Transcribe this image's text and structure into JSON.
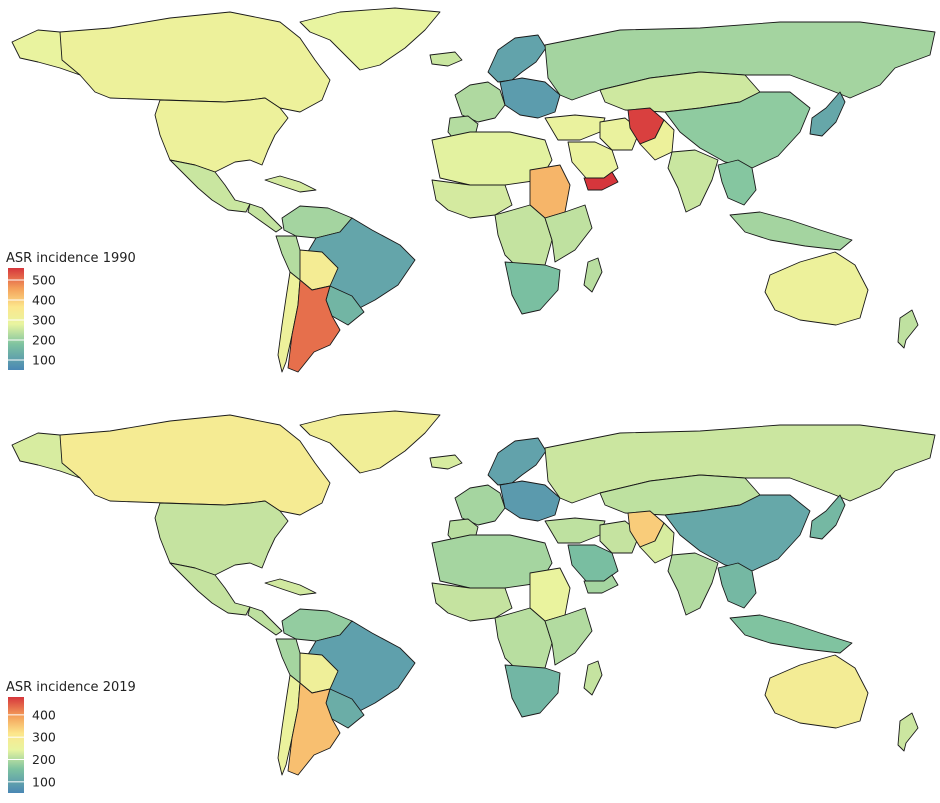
{
  "maps": [
    {
      "id": "map-1990",
      "legend": {
        "title": "ASR incidence 1990",
        "ticks": [
          "500",
          "400",
          "300",
          "200",
          "100"
        ],
        "min": 50,
        "max": 560
      },
      "regions": [
        {
          "name": "greenland",
          "value": 280
        },
        {
          "name": "canada",
          "value": 300
        },
        {
          "name": "alaska",
          "value": 285
        },
        {
          "name": "usa",
          "value": 300
        },
        {
          "name": "mexico",
          "value": 250
        },
        {
          "name": "central-america",
          "value": 245
        },
        {
          "name": "caribbean",
          "value": 260
        },
        {
          "name": "colombia-venezuela",
          "value": 215
        },
        {
          "name": "peru-ecuador",
          "value": 230
        },
        {
          "name": "brazil",
          "value": 115
        },
        {
          "name": "bolivia",
          "value": 330
        },
        {
          "name": "paraguay-uruguay",
          "value": 150
        },
        {
          "name": "chile",
          "value": 300
        },
        {
          "name": "argentina",
          "value": 505
        },
        {
          "name": "iceland",
          "value": 250
        },
        {
          "name": "scandinavia",
          "value": 110
        },
        {
          "name": "western-europe",
          "value": 225
        },
        {
          "name": "iberia",
          "value": 230
        },
        {
          "name": "central-europe",
          "value": 95
        },
        {
          "name": "russia",
          "value": 215
        },
        {
          "name": "mongolia-kazakhstan",
          "value": 255
        },
        {
          "name": "china",
          "value": 195
        },
        {
          "name": "japan-korea",
          "value": 120
        },
        {
          "name": "middle-east",
          "value": 290
        },
        {
          "name": "arabia",
          "value": 290
        },
        {
          "name": "yemen",
          "value": 565
        },
        {
          "name": "iran",
          "value": 290
        },
        {
          "name": "afghanistan",
          "value": 550
        },
        {
          "name": "pakistan",
          "value": 300
        },
        {
          "name": "india",
          "value": 250
        },
        {
          "name": "southeast-asia",
          "value": 185
        },
        {
          "name": "indonesia",
          "value": 215
        },
        {
          "name": "north-africa",
          "value": 275
        },
        {
          "name": "sudan",
          "value": 430
        },
        {
          "name": "west-africa",
          "value": 260
        },
        {
          "name": "central-africa",
          "value": 245
        },
        {
          "name": "east-africa",
          "value": 240
        },
        {
          "name": "southern-africa",
          "value": 170
        },
        {
          "name": "madagascar",
          "value": 235
        },
        {
          "name": "australia",
          "value": 300
        },
        {
          "name": "new-zealand",
          "value": 240
        }
      ]
    },
    {
      "id": "map-2019",
      "legend": {
        "title": "ASR incidence 2019",
        "ticks": [
          "400",
          "300",
          "200",
          "100"
        ],
        "min": 50,
        "max": 480
      },
      "regions": [
        {
          "name": "greenland",
          "value": 275
        },
        {
          "name": "canada",
          "value": 290
        },
        {
          "name": "alaska",
          "value": 230
        },
        {
          "name": "usa",
          "value": 215
        },
        {
          "name": "mexico",
          "value": 215
        },
        {
          "name": "central-america",
          "value": 210
        },
        {
          "name": "caribbean",
          "value": 225
        },
        {
          "name": "colombia-venezuela",
          "value": 175
        },
        {
          "name": "peru-ecuador",
          "value": 190
        },
        {
          "name": "brazil",
          "value": 95
        },
        {
          "name": "bolivia",
          "value": 270
        },
        {
          "name": "paraguay-uruguay",
          "value": 120
        },
        {
          "name": "chile",
          "value": 255
        },
        {
          "name": "argentina",
          "value": 360
        },
        {
          "name": "iceland",
          "value": 230
        },
        {
          "name": "scandinavia",
          "value": 100
        },
        {
          "name": "western-europe",
          "value": 190
        },
        {
          "name": "iberia",
          "value": 205
        },
        {
          "name": "central-europe",
          "value": 85
        },
        {
          "name": "russia",
          "value": 220
        },
        {
          "name": "mongolia-kazakhstan",
          "value": 210
        },
        {
          "name": "china",
          "value": 110
        },
        {
          "name": "japan-korea",
          "value": 140
        },
        {
          "name": "middle-east",
          "value": 210
        },
        {
          "name": "arabia",
          "value": 150
        },
        {
          "name": "yemen",
          "value": 190
        },
        {
          "name": "iran",
          "value": 215
        },
        {
          "name": "afghanistan",
          "value": 345
        },
        {
          "name": "pakistan",
          "value": 230
        },
        {
          "name": "india",
          "value": 200
        },
        {
          "name": "southeast-asia",
          "value": 140
        },
        {
          "name": "indonesia",
          "value": 160
        },
        {
          "name": "north-africa",
          "value": 190
        },
        {
          "name": "sudan",
          "value": 250
        },
        {
          "name": "west-africa",
          "value": 215
        },
        {
          "name": "central-africa",
          "value": 205
        },
        {
          "name": "east-africa",
          "value": 200
        },
        {
          "name": "southern-africa",
          "value": 135
        },
        {
          "name": "madagascar",
          "value": 215
        },
        {
          "name": "australia",
          "value": 285
        },
        {
          "name": "new-zealand",
          "value": 220
        }
      ]
    }
  ]
}
